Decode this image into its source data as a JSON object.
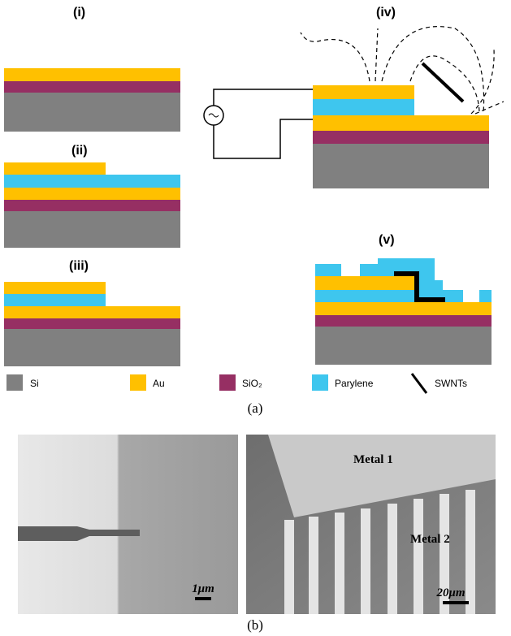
{
  "panel_a": {
    "steps": [
      "(i)",
      "(ii)",
      "(iii)",
      "(iv)",
      "(v)"
    ],
    "legend": [
      "Si",
      "Au",
      "SiO₂",
      "Parylene",
      "SWNTs"
    ],
    "caption": "(a)"
  },
  "panel_b": {
    "left_image": {
      "scale_bar": "1μm"
    },
    "right_image": {
      "labels": [
        "Metal 1",
        "Metal 2"
      ],
      "scale_bar": "20μm"
    },
    "caption": "(b)"
  }
}
